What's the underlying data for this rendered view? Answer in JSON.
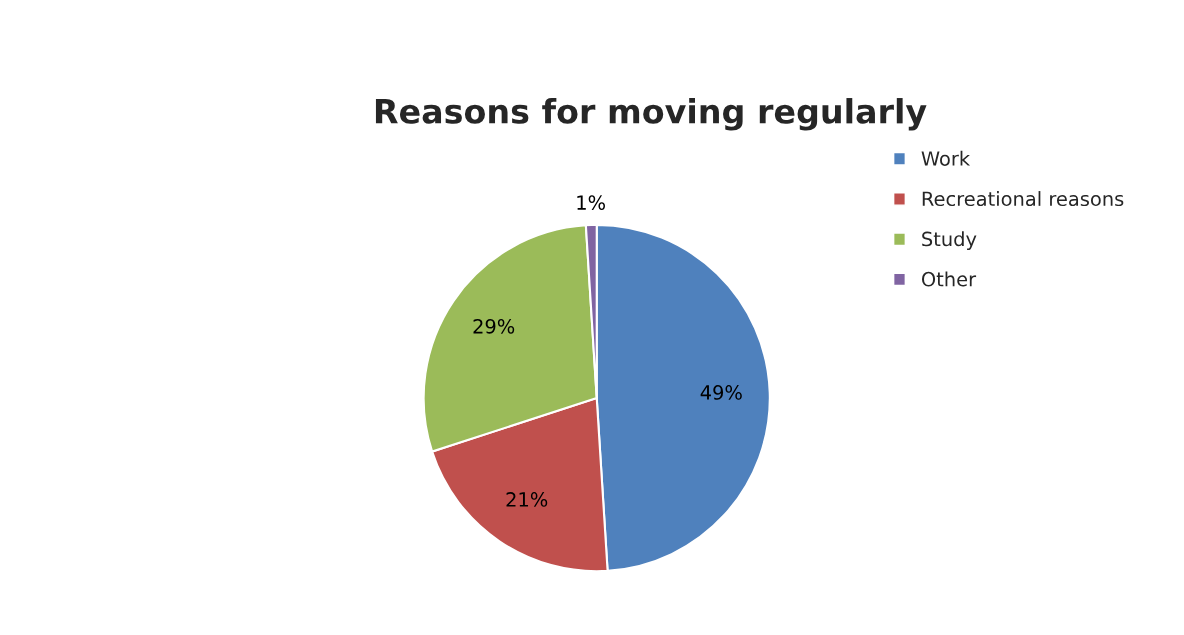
{
  "chart_data": {
    "type": "pie",
    "title": "Reasons for moving regularly",
    "categories": [
      "Work",
      "Recreational reasons",
      "Study",
      "Other"
    ],
    "values": [
      49,
      21,
      29,
      1
    ],
    "colors": [
      "#4f81bd",
      "#c0504d",
      "#9bbb59",
      "#8064a2"
    ],
    "value_labels": [
      "49%",
      "21%",
      "29%",
      "1%"
    ],
    "legend": "top right"
  }
}
